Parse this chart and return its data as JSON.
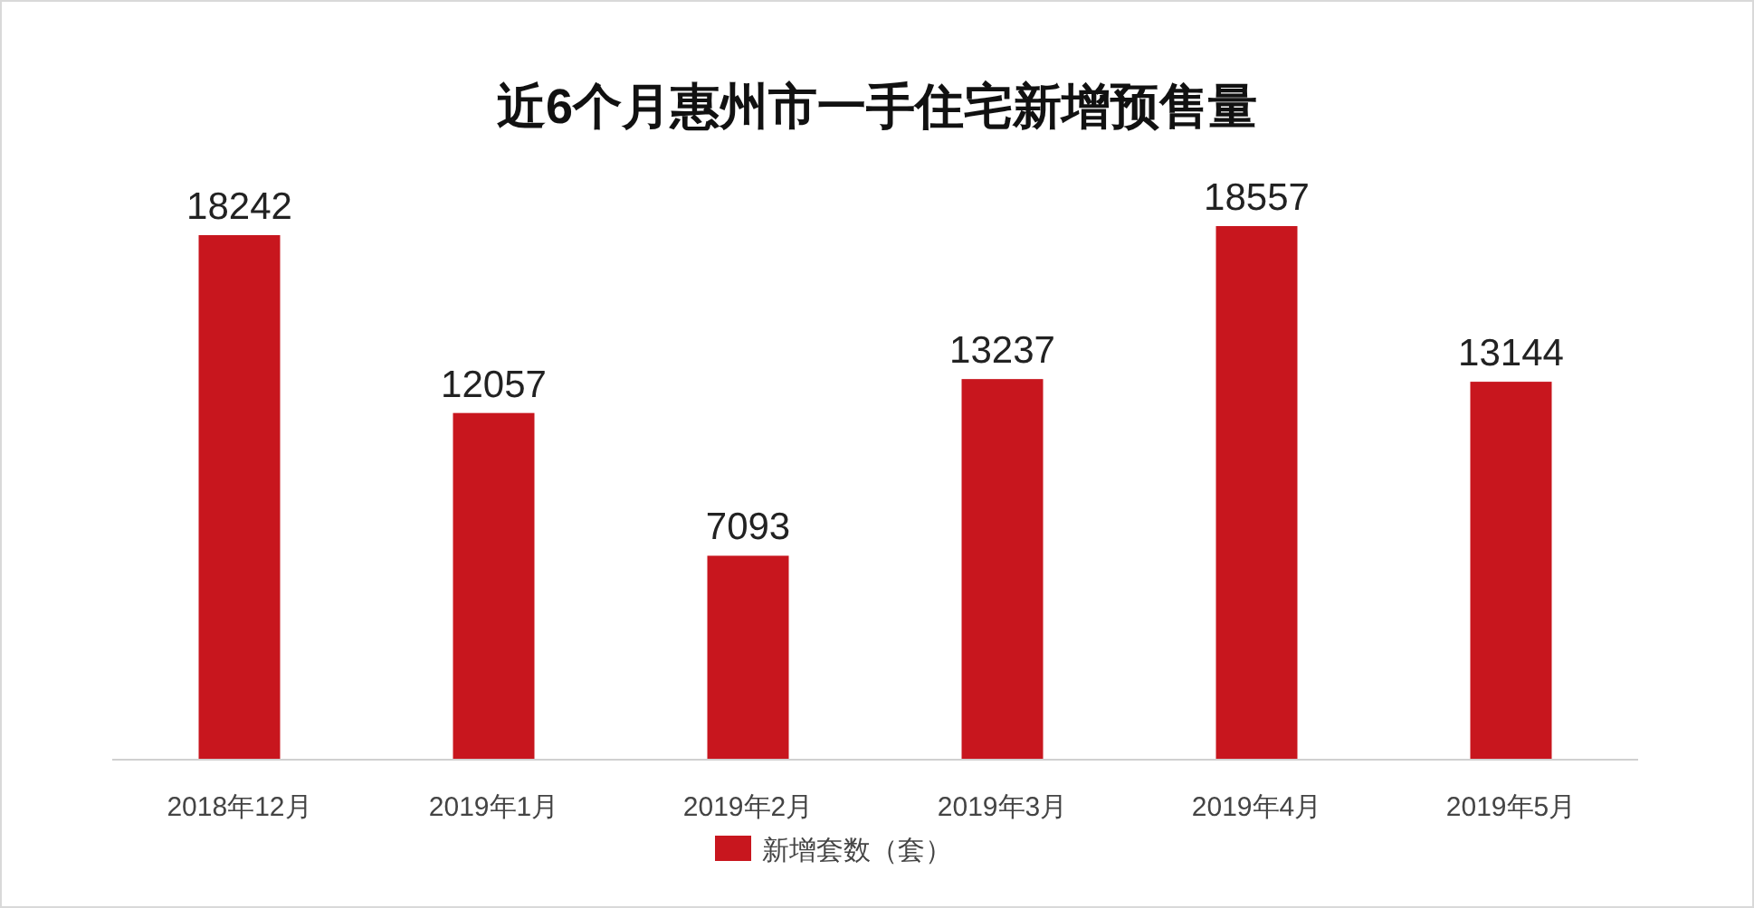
{
  "chart_data": {
    "type": "bar",
    "title": "近6个月惠州市一手住宅新增预售量",
    "categories": [
      "2018年12月",
      "2019年1月",
      "2019年2月",
      "2019年3月",
      "2019年4月",
      "2019年5月"
    ],
    "series": [
      {
        "name": "新增套数（套）",
        "color": "#c8161e",
        "values": [
          18242,
          12057,
          7093,
          13237,
          18557,
          13144
        ]
      }
    ],
    "data_labels": true,
    "legend": "bottom"
  }
}
